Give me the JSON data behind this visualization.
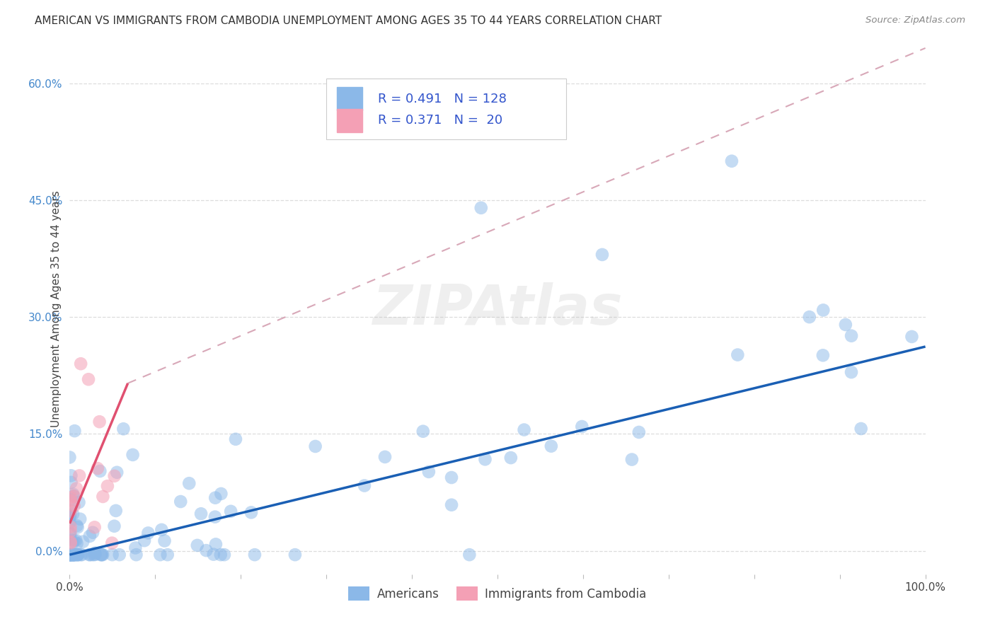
{
  "title": "AMERICAN VS IMMIGRANTS FROM CAMBODIA UNEMPLOYMENT AMONG AGES 35 TO 44 YEARS CORRELATION CHART",
  "source": "Source: ZipAtlas.com",
  "ylabel": "Unemployment Among Ages 35 to 44 years",
  "watermark": "ZIPAtlas",
  "americans_R": 0.491,
  "americans_N": 128,
  "cambodia_R": 0.371,
  "cambodia_N": 20,
  "xlim": [
    0.0,
    1.0
  ],
  "ylim": [
    -0.03,
    0.65
  ],
  "americans_color": "#8BB8E8",
  "cambodia_color": "#F4A0B5",
  "trendline_americans_color": "#1A5FB4",
  "trendline_cambodia_color": "#E05070",
  "trendline_dashed_color": "#D8A8B8",
  "background_color": "#FFFFFF",
  "legend_color": "#3355CC",
  "grid_color": "#DDDDDD",
  "ytick_color": "#4488CC",
  "title_color": "#333333",
  "source_color": "#888888"
}
